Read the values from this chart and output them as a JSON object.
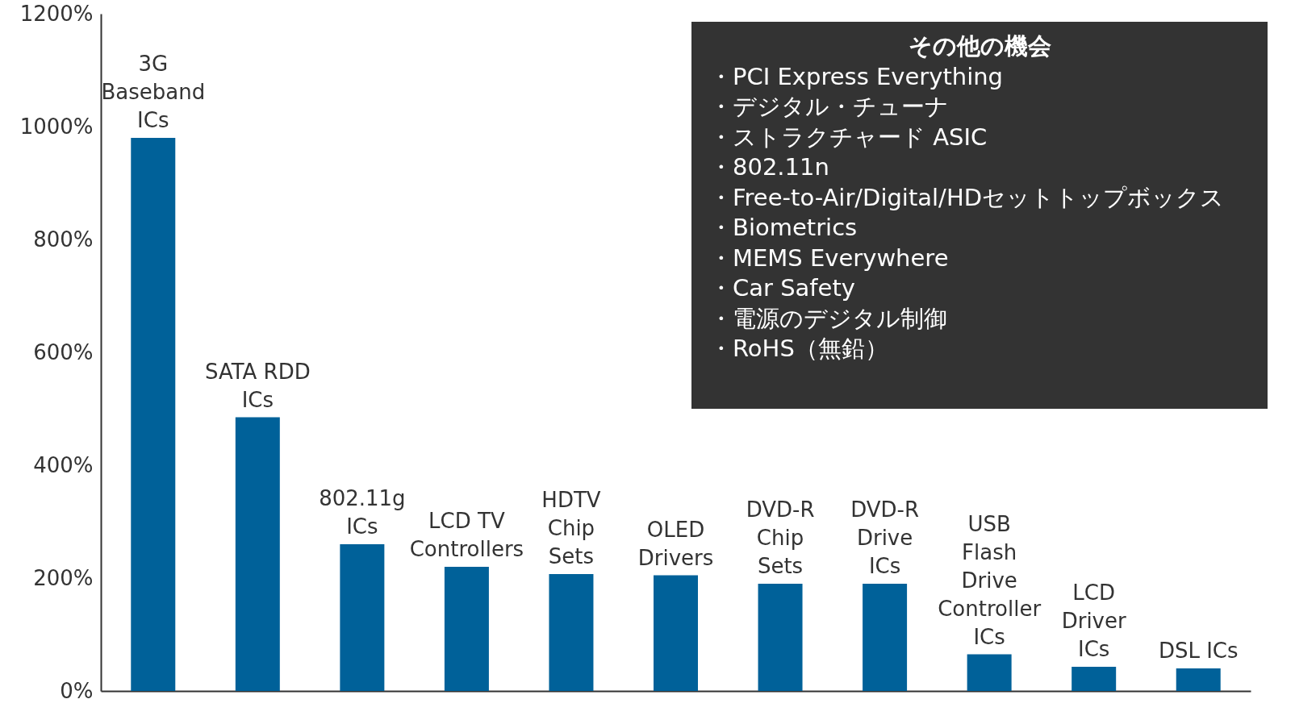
{
  "chart_data": {
    "type": "bar",
    "categories": [
      "3G Baseband ICs",
      "SATA RDD ICs",
      "802.11g ICs",
      "LCD TV Controllers",
      "HDTV Chip Sets",
      "OLED Drivers",
      "DVD-R Chip Sets",
      "DVD-R Drive ICs",
      "USB Flash Drive Controller ICs",
      "LCD Driver ICs",
      "DSL ICs"
    ],
    "values": [
      980,
      485,
      260,
      220,
      207,
      205,
      190,
      190,
      65,
      43,
      40
    ],
    "color": "#006199",
    "ylim": [
      0,
      1200
    ],
    "yticks": [
      {
        "value": 0,
        "label": "0%"
      },
      {
        "value": 200,
        "label": "200%"
      },
      {
        "value": 400,
        "label": "400%"
      },
      {
        "value": 600,
        "label": "600%"
      },
      {
        "value": 800,
        "label": "800%"
      },
      {
        "value": 1000,
        "label": "1000%"
      },
      {
        "value": 1200,
        "label": "1200%"
      }
    ],
    "grid": false,
    "annotations": [
      "その他の機会",
      "・PCI Express Everything",
      "・デジタル・チューナ",
      "・ストラクチャード ASIC",
      "・802.11n",
      "・Free-to-Air/Digital/HDセットトップボックス",
      "・Biometrics",
      "・MEMS Everywhere",
      "・Car Safety",
      "・電源のデジタル制御",
      "・RoHS（無鉛）"
    ]
  }
}
